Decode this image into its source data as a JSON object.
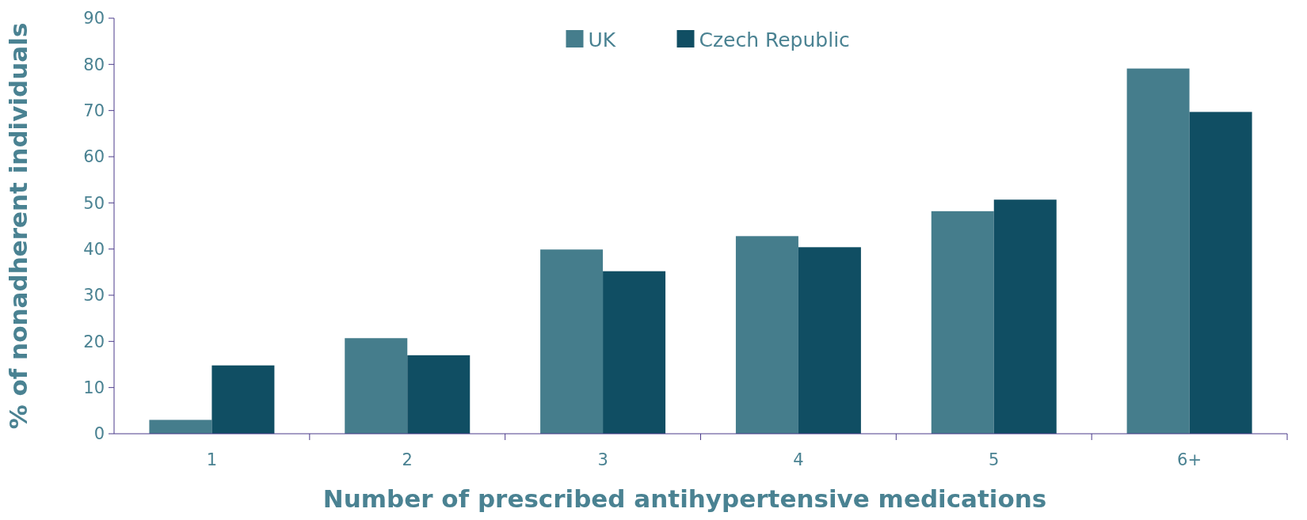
{
  "chart_data": {
    "type": "bar",
    "xlabel": "Number of prescribed antihypertensive medications",
    "ylabel": "% of nonadherent individuals",
    "categories": [
      "1",
      "2",
      "3",
      "4",
      "5",
      "6+"
    ],
    "series": [
      {
        "name": "UK",
        "color": "#457d8c",
        "values": [
          3,
          20.7,
          39.9,
          42.8,
          48.2,
          79.1
        ]
      },
      {
        "name": "Czech Republic",
        "color": "#104e63",
        "values": [
          14.8,
          17,
          35.2,
          40.4,
          50.7,
          69.7
        ]
      }
    ],
    "ylim": [
      0,
      90
    ],
    "yticks": [
      0,
      10,
      20,
      30,
      40,
      50,
      60,
      70,
      80,
      90
    ],
    "grid": false,
    "legend": "top"
  }
}
